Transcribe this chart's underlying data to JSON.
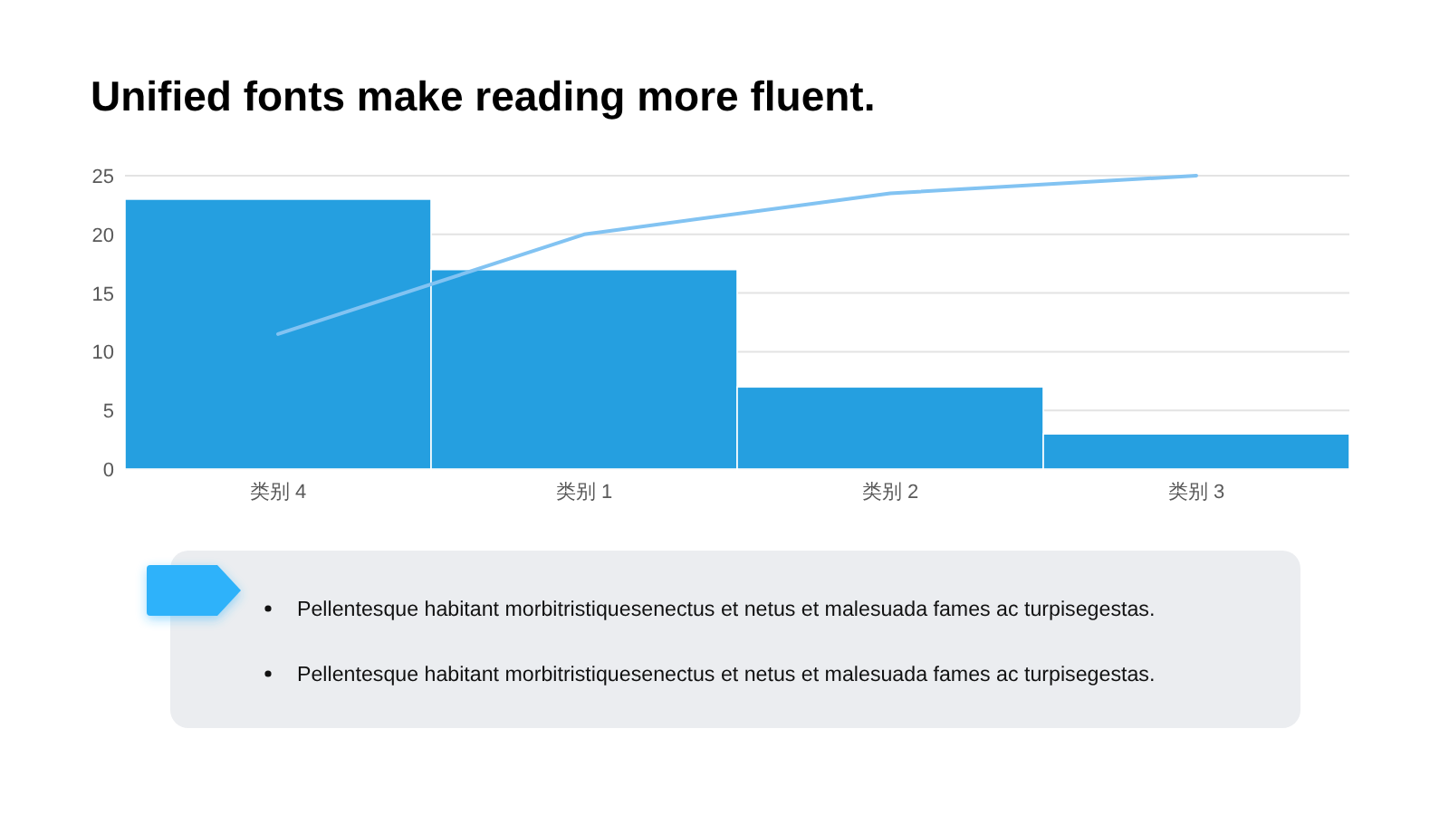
{
  "chart_data": {
    "type": "bar",
    "title": "Unified fonts make reading more fluent.",
    "categories": [
      "类别 4",
      "类别 1",
      "类别 2",
      "类别 3"
    ],
    "series": [
      {
        "color": "#259fe0",
        "values": [
          23,
          17,
          7,
          3
        ]
      },
      {
        "type": "line",
        "color": "#82c3f2",
        "values": [
          11.5,
          20,
          23.5,
          25
        ]
      }
    ],
    "ylim": [
      0,
      25
    ],
    "yticks": [
      0,
      5,
      10,
      15,
      20,
      25
    ],
    "grid": "y",
    "annotations": [
      "Pellentesque habitant morbitristiquesenectus et netus et malesuada fames ac turpisegestas.",
      "Pellentesque habitant morbitristiquesenectus et netus et malesuada fames ac turpisegestas."
    ]
  }
}
